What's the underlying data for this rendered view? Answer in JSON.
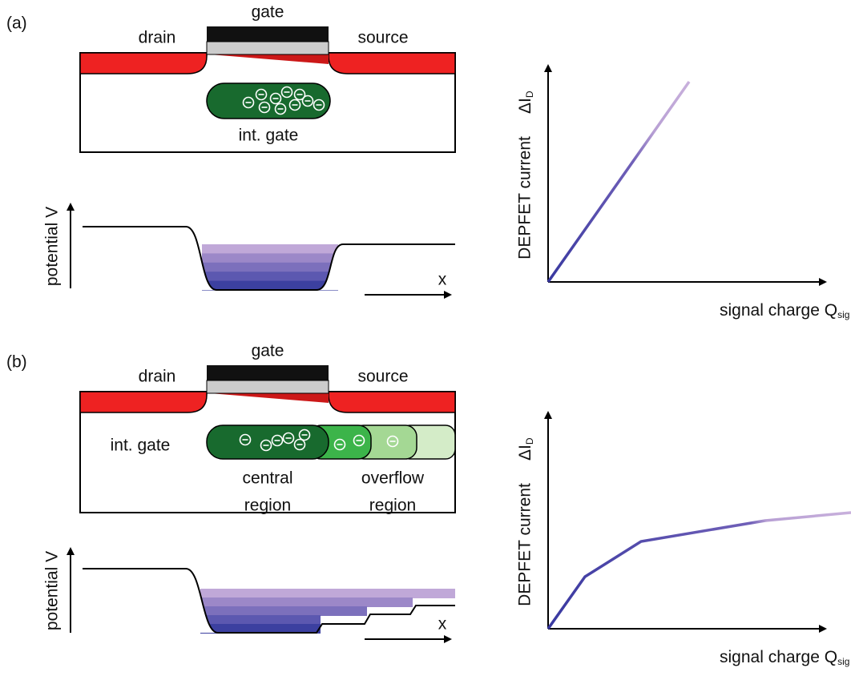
{
  "panels": [
    {
      "label": "(a)",
      "device": {
        "gate": "gate",
        "drain": "drain",
        "source": "source",
        "int_gate": "int. gate"
      },
      "potential": {
        "y_label": "potential V",
        "x_label": "x"
      },
      "response": {
        "y_label": "DEPFET current",
        "y_symbol": "ΔI",
        "y_subscript": "D",
        "x_label": "signal charge Q",
        "x_subscript": "sig"
      }
    },
    {
      "label": "(b)",
      "device": {
        "gate": "gate",
        "drain": "drain",
        "source": "source",
        "int_gate": "int. gate",
        "regions": [
          [
            "central",
            "region"
          ],
          [
            "overflow",
            "region"
          ]
        ]
      },
      "potential": {
        "y_label": "potential V",
        "x_label": "x"
      },
      "response": {
        "y_label": "DEPFET current",
        "y_symbol": "ΔI",
        "y_subscript": "D",
        "x_label": "signal charge Q",
        "x_subscript": "sig"
      }
    }
  ]
}
